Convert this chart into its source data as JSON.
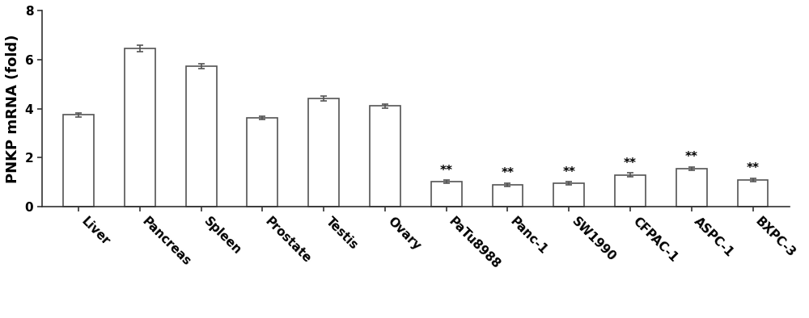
{
  "categories": [
    "Liver",
    "Pancreas",
    "Spleen",
    "Prostate",
    "Testis",
    "Ovary",
    "PaTu8988",
    "Panc-1",
    "SW1990",
    "CFPAC-1",
    "ASPC-1",
    "BXPC-3"
  ],
  "values": [
    3.75,
    6.45,
    5.72,
    3.62,
    4.42,
    4.1,
    1.02,
    0.9,
    0.95,
    1.3,
    1.55,
    1.1
  ],
  "errors": [
    0.08,
    0.12,
    0.1,
    0.07,
    0.1,
    0.09,
    0.06,
    0.07,
    0.06,
    0.07,
    0.07,
    0.07
  ],
  "significance": [
    false,
    false,
    false,
    false,
    false,
    false,
    true,
    true,
    true,
    true,
    true,
    true
  ],
  "bar_facecolor": "#ffffff",
  "bar_edgecolor": "#555555",
  "error_color": "#555555",
  "ylabel": "PNKP mRNA (fold)",
  "ylim": [
    0,
    8
  ],
  "yticks": [
    0,
    2,
    4,
    6,
    8
  ],
  "significance_label": "**",
  "sig_fontsize": 11,
  "ylabel_fontsize": 13,
  "tick_fontsize": 11,
  "bar_linewidth": 1.2,
  "background_color": "#ffffff",
  "figwidth": 10.0,
  "figheight": 3.94
}
